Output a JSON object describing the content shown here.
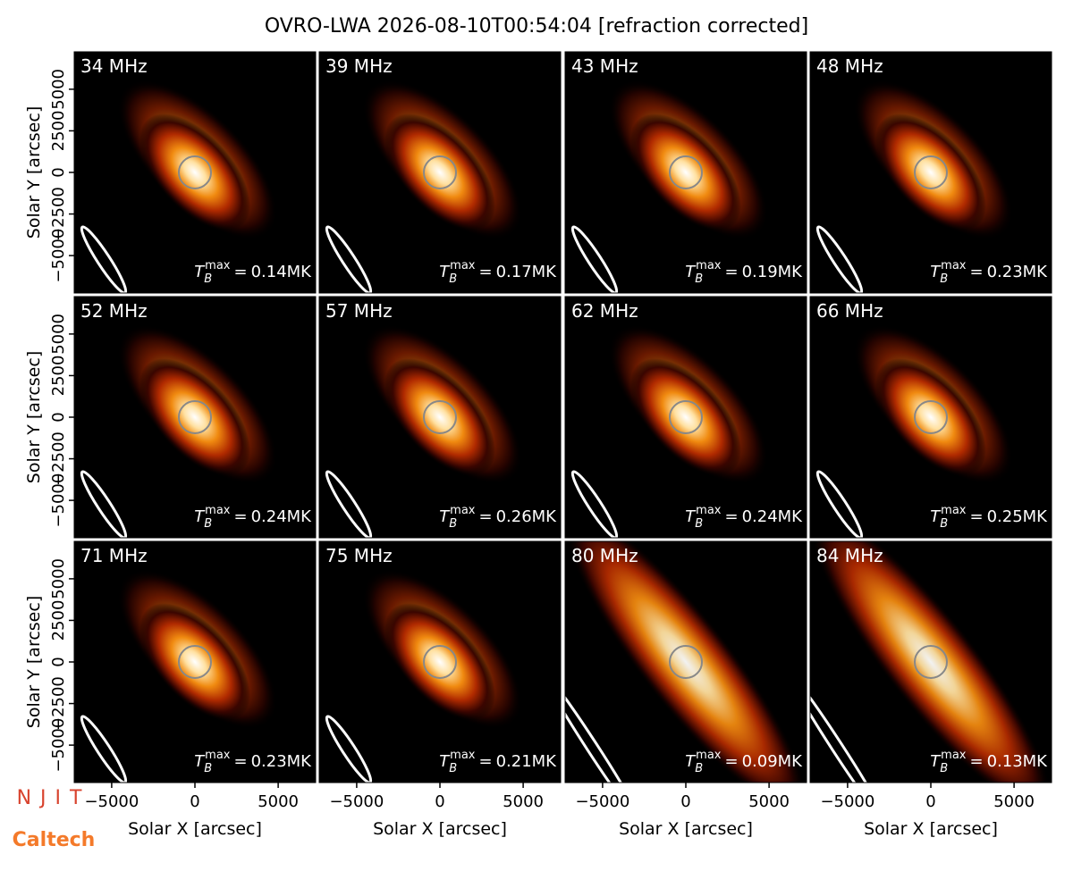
{
  "chart_data": {
    "type": "image-grid",
    "title": "OVRO-LWA 2026-08-10T00:54:04 [refraction corrected]",
    "x_label": "Solar X [arcsec]",
    "y_label": "Solar Y [arcsec]",
    "xlim": [
      -7250,
      7250
    ],
    "ylim": [
      -7250,
      7250
    ],
    "xticks": [
      {
        "value": -5000,
        "label": "−5000"
      },
      0,
      5000
    ],
    "yticks": [
      {
        "value": -5000,
        "label": "−5000"
      },
      {
        "value": -2500,
        "label": "−2500"
      },
      0,
      2500,
      5000
    ],
    "tmax_symbol": {
      "base": "T",
      "sub": "B",
      "sup": "max",
      "eq": "="
    },
    "panels": [
      {
        "freq": "34 MHz",
        "tmax": 0.14,
        "tmax_label": "0.14MK"
      },
      {
        "freq": "39 MHz",
        "tmax": 0.17,
        "tmax_label": "0.17MK"
      },
      {
        "freq": "43 MHz",
        "tmax": 0.19,
        "tmax_label": "0.19MK"
      },
      {
        "freq": "48 MHz",
        "tmax": 0.23,
        "tmax_label": "0.23MK"
      },
      {
        "freq": "52 MHz",
        "tmax": 0.24,
        "tmax_label": "0.24MK"
      },
      {
        "freq": "57 MHz",
        "tmax": 0.26,
        "tmax_label": "0.26MK"
      },
      {
        "freq": "62 MHz",
        "tmax": 0.24,
        "tmax_label": "0.24MK"
      },
      {
        "freq": "66 MHz",
        "tmax": 0.25,
        "tmax_label": "0.25MK"
      },
      {
        "freq": "71 MHz",
        "tmax": 0.23,
        "tmax_label": "0.23MK"
      },
      {
        "freq": "75 MHz",
        "tmax": 0.21,
        "tmax_label": "0.21MK"
      },
      {
        "freq": "80 MHz",
        "tmax": 0.09,
        "tmax_label": "0.09MK"
      },
      {
        "freq": "84 MHz",
        "tmax": 0.13,
        "tmax_label": "0.13MK"
      }
    ],
    "logos": [
      "NJIT",
      "Caltech"
    ]
  }
}
